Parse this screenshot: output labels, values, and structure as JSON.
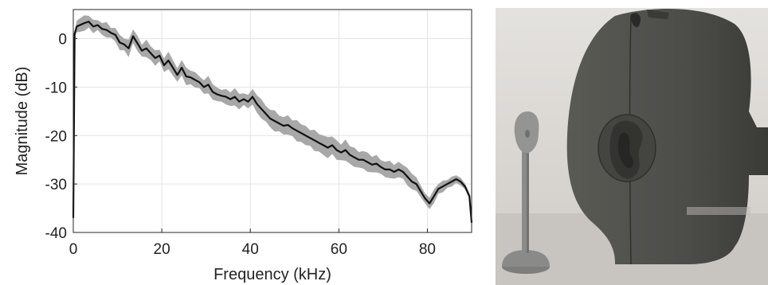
{
  "chart_data": {
    "type": "line",
    "title": "",
    "xlabel": "Frequency (kHz)",
    "ylabel": "Magnitude (dB)",
    "xlim": [
      0,
      90
    ],
    "ylim": [
      -40,
      6
    ],
    "xticks": [
      0,
      20,
      40,
      60,
      80
    ],
    "yticks": [
      0,
      -10,
      -20,
      -30,
      -40
    ],
    "grid": true,
    "legend": "none",
    "series": [
      {
        "color": "#111111",
        "x": [
          0,
          0.3,
          0.8,
          1.5,
          2.5,
          3.5,
          4.5,
          5.5,
          6.5,
          7.5,
          8.5,
          9.5,
          10.5,
          11.5,
          12.5,
          13.5,
          14.5,
          15.5,
          16.5,
          17.5,
          18.5,
          19.5,
          20.5,
          21.5,
          22.5,
          23.5,
          24.5,
          25.5,
          26.5,
          27.5,
          28.5,
          29.5,
          30.5,
          31.5,
          32.5,
          33.5,
          34.5,
          35.5,
          36.5,
          37.5,
          38.5,
          39.5,
          40.5,
          41.5,
          42.5,
          43.5,
          44.5,
          45.5,
          46.5,
          47.5,
          48.5,
          49.5,
          50.5,
          51.5,
          52.5,
          53.5,
          54.5,
          55.5,
          56.5,
          57.5,
          58.5,
          59.5,
          60.5,
          61.5,
          62.5,
          63.5,
          64.5,
          65.5,
          66.5,
          67.5,
          68.5,
          69.5,
          70.5,
          71.5,
          72.5,
          73.5,
          74.5,
          75.5,
          76.5,
          77.5,
          78.5,
          79.5,
          80.5,
          81.5,
          82.5,
          83.5,
          84.5,
          85.5,
          86.5,
          87.5,
          88.5,
          89.5,
          90
        ],
        "y": [
          -37,
          1,
          2.5,
          2.8,
          3.2,
          3.5,
          2.5,
          2.8,
          2.0,
          1.8,
          1.2,
          0.8,
          -0.8,
          -1.2,
          -2.0,
          0.5,
          -1.0,
          -2.5,
          -2.0,
          -3.0,
          -4.0,
          -3.5,
          -5.5,
          -4.5,
          -6.0,
          -7.5,
          -6.0,
          -7.8,
          -8.0,
          -8.5,
          -9.0,
          -10.0,
          -9.5,
          -11.0,
          -11.5,
          -11.8,
          -12.0,
          -12.5,
          -12.0,
          -13.0,
          -12.5,
          -13.0,
          -12.0,
          -13.5,
          -14.5,
          -15.5,
          -16.5,
          -17.0,
          -17.5,
          -18.0,
          -17.8,
          -18.5,
          -19.0,
          -19.5,
          -20.0,
          -20.5,
          -21.0,
          -21.5,
          -22.0,
          -22.5,
          -22.0,
          -23.0,
          -23.5,
          -23.0,
          -24.0,
          -24.5,
          -25.0,
          -25.0,
          -25.5,
          -26.0,
          -25.8,
          -26.5,
          -27.0,
          -27.0,
          -27.5,
          -27.0,
          -27.5,
          -28.5,
          -29.5,
          -30.0,
          -31.5,
          -33.0,
          -34.0,
          -32.5,
          -31.0,
          -30.5,
          -30.0,
          -29.5,
          -29.0,
          -29.5,
          -30.5,
          -32.5,
          -38.0
        ]
      }
    ],
    "band": {
      "color": "#a8a8a8",
      "spread": [
        0,
        0.6,
        1.2,
        1.4,
        1.6,
        1.2,
        1.4,
        1.0,
        1.2,
        1.6,
        1.0,
        1.4,
        1.6,
        1.2,
        1.8,
        1.4,
        1.6,
        1.2,
        1.8,
        1.4,
        1.6,
        1.2,
        1.4,
        1.8,
        1.6,
        1.4,
        1.6,
        1.8,
        1.4,
        1.6,
        1.2,
        1.4,
        1.8,
        1.6,
        1.4,
        1.2,
        1.6,
        1.4,
        1.8,
        1.6,
        1.2,
        1.4,
        1.6,
        1.8,
        2.0,
        1.6,
        1.8,
        2.2,
        1.6,
        1.8,
        2.0,
        1.6,
        2.2,
        1.8,
        2.0,
        1.6,
        2.2,
        1.8,
        2.0,
        2.2,
        1.8,
        2.0,
        1.6,
        2.2,
        1.8,
        2.0,
        1.6,
        1.8,
        2.0,
        1.6,
        1.8,
        1.4,
        1.6,
        1.8,
        1.4,
        1.6,
        1.4,
        1.8,
        1.6,
        1.4,
        1.2,
        1.0,
        1.2,
        1.4,
        1.0,
        1.2,
        0.8,
        1.0,
        0.8,
        0.8,
        0.6,
        0.6,
        0.4
      ]
    }
  },
  "photo": {
    "colors": {
      "background": "#d9d7d3",
      "table": "#c9c6c1",
      "head": "#4f4f4a",
      "head_shade": "#3d3d39",
      "ear": "#363633",
      "figurine": "#8e8e8c",
      "figurine_shade": "#6f6f6d"
    }
  }
}
